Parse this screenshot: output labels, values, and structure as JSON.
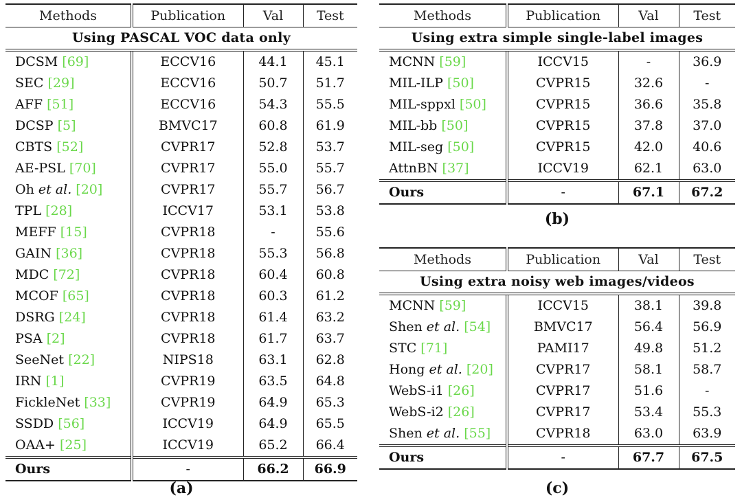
{
  "tables": {
    "a": {
      "headers": [
        "Methods",
        "Publication",
        "Val",
        "Test"
      ],
      "section": "Using PASCAL VOC data only",
      "rows": [
        {
          "method": "DCSM",
          "em": "",
          "cite": "[69]",
          "pub": "ECCV16",
          "val": "44.1",
          "test": "45.1"
        },
        {
          "method": "SEC",
          "em": "",
          "cite": "[29]",
          "pub": "ECCV16",
          "val": "50.7",
          "test": "51.7"
        },
        {
          "method": "AFF",
          "em": "",
          "cite": "[51]",
          "pub": "ECCV16",
          "val": "54.3",
          "test": "55.5"
        },
        {
          "method": "DCSP",
          "em": "",
          "cite": "[5]",
          "pub": "BMVC17",
          "val": "60.8",
          "test": "61.9"
        },
        {
          "method": "CBTS",
          "em": "",
          "cite": "[52]",
          "pub": "CVPR17",
          "val": "52.8",
          "test": "53.7"
        },
        {
          "method": "AE-PSL",
          "em": "",
          "cite": "[70]",
          "pub": "CVPR17",
          "val": "55.0",
          "test": "55.7"
        },
        {
          "method": "Oh",
          "em": "et al.",
          "cite": "[20]",
          "pub": "CVPR17",
          "val": "55.7",
          "test": "56.7"
        },
        {
          "method": "TPL",
          "em": "",
          "cite": "[28]",
          "pub": "ICCV17",
          "val": "53.1",
          "test": "53.8"
        },
        {
          "method": "MEFF",
          "em": "",
          "cite": "[15]",
          "pub": "CVPR18",
          "val": "-",
          "test": "55.6"
        },
        {
          "method": "GAIN",
          "em": "",
          "cite": "[36]",
          "pub": "CVPR18",
          "val": "55.3",
          "test": "56.8"
        },
        {
          "method": "MDC",
          "em": "",
          "cite": "[72]",
          "pub": "CVPR18",
          "val": "60.4",
          "test": "60.8"
        },
        {
          "method": "MCOF",
          "em": "",
          "cite": "[65]",
          "pub": "CVPR18",
          "val": "60.3",
          "test": "61.2"
        },
        {
          "method": "DSRG",
          "em": "",
          "cite": "[24]",
          "pub": "CVPR18",
          "val": "61.4",
          "test": "63.2"
        },
        {
          "method": "PSA",
          "em": "",
          "cite": "[2]",
          "pub": "CVPR18",
          "val": "61.7",
          "test": "63.7"
        },
        {
          "method": "SeeNet",
          "em": "",
          "cite": "[22]",
          "pub": "NIPS18",
          "val": "63.1",
          "test": "62.8"
        },
        {
          "method": "IRN",
          "em": "",
          "cite": "[1]",
          "pub": "CVPR19",
          "val": "63.5",
          "test": "64.8"
        },
        {
          "method": "FickleNet",
          "em": "",
          "cite": "[33]",
          "pub": "CVPR19",
          "val": "64.9",
          "test": "65.3"
        },
        {
          "method": "SSDD",
          "em": "",
          "cite": "[56]",
          "pub": "ICCV19",
          "val": "64.9",
          "test": "65.5"
        },
        {
          "method": "OAA+",
          "em": "",
          "cite": "[25]",
          "pub": "ICCV19",
          "val": "65.2",
          "test": "66.4"
        }
      ],
      "ours": {
        "method": "Ours",
        "pub": "-",
        "val": "66.2",
        "test": "66.9"
      },
      "caption": "(a)"
    },
    "b": {
      "headers": [
        "Methods",
        "Publication",
        "Val",
        "Test"
      ],
      "section": "Using extra simple single-label images",
      "rows": [
        {
          "method": "MCNN",
          "em": "",
          "cite": "[59]",
          "pub": "ICCV15",
          "val": "-",
          "test": "36.9"
        },
        {
          "method": "MIL-ILP",
          "em": "",
          "cite": "[50]",
          "pub": "CVPR15",
          "val": "32.6",
          "test": "-"
        },
        {
          "method": "MIL-sppxl",
          "em": "",
          "cite": "[50]",
          "pub": "CVPR15",
          "val": "36.6",
          "test": "35.8"
        },
        {
          "method": "MIL-bb",
          "em": "",
          "cite": "[50]",
          "pub": "CVPR15",
          "val": "37.8",
          "test": "37.0"
        },
        {
          "method": "MIL-seg",
          "em": "",
          "cite": "[50]",
          "pub": "CVPR15",
          "val": "42.0",
          "test": "40.6"
        },
        {
          "method": "AttnBN",
          "em": "",
          "cite": "[37]",
          "pub": "ICCV19",
          "val": "62.1",
          "test": "63.0"
        }
      ],
      "ours": {
        "method": "Ours",
        "pub": "-",
        "val": "67.1",
        "test": "67.2"
      },
      "caption": "(b)"
    },
    "c": {
      "headers": [
        "Methods",
        "Publication",
        "Val",
        "Test"
      ],
      "section": "Using extra noisy web images/videos",
      "rows": [
        {
          "method": "MCNN",
          "em": "",
          "cite": "[59]",
          "pub": "ICCV15",
          "val": "38.1",
          "test": "39.8"
        },
        {
          "method": "Shen",
          "em": "et al.",
          "cite": "[54]",
          "pub": "BMVC17",
          "val": "56.4",
          "test": "56.9"
        },
        {
          "method": "STC",
          "em": "",
          "cite": "[71]",
          "pub": "PAMI17",
          "val": "49.8",
          "test": "51.2"
        },
        {
          "method": "Hong",
          "em": "et al.",
          "cite": "[20]",
          "pub": "CVPR17",
          "val": "58.1",
          "test": "58.7"
        },
        {
          "method": "WebS-i1",
          "em": "",
          "cite": "[26]",
          "pub": "CVPR17",
          "val": "51.6",
          "test": "-"
        },
        {
          "method": "WebS-i2",
          "em": "",
          "cite": "[26]",
          "pub": "CVPR17",
          "val": "53.4",
          "test": "55.3"
        },
        {
          "method": "Shen",
          "em": "et al.",
          "cite": "[55]",
          "pub": "CVPR18",
          "val": "63.0",
          "test": "63.9"
        }
      ],
      "ours": {
        "method": "Ours",
        "pub": "-",
        "val": "67.7",
        "test": "67.5"
      },
      "caption": "(c)"
    }
  }
}
